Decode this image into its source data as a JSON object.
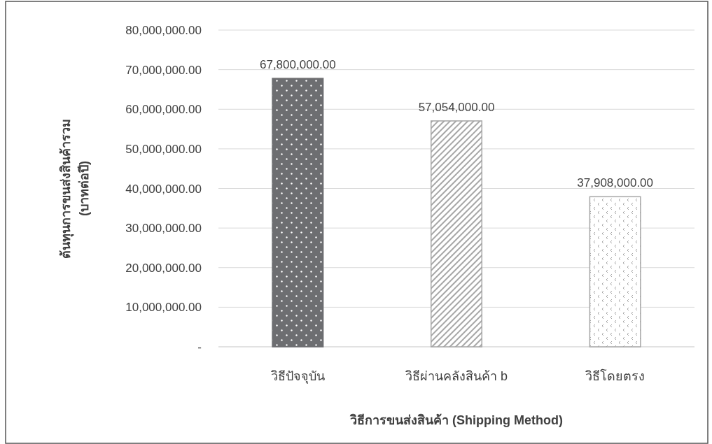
{
  "chart_data": {
    "type": "bar",
    "xlabel": "วิธีการขนส่งสินค้า (Shipping Method)",
    "ylabel": "ต้นทุนการขนส่งสินค้ารวม (บาทต่อปี)",
    "categories": [
      "วิธีปัจจุบัน",
      "วิธีผ่านคลังสินค้า b",
      "วิธีโดยตรง"
    ],
    "values": [
      67800000,
      57054000,
      37908000
    ],
    "colors": [
      "#6d6e71",
      "#a6a6a6",
      "#a6a6a6"
    ],
    "value_labels": [
      "67,800,000.00",
      "57,054,000.00",
      "37,908,000.00"
    ],
    "ylim": [
      0,
      80000000
    ],
    "yticks": [
      {
        "value": 0,
        "label": "-"
      },
      {
        "value": 10000000,
        "label": "10,000,000.00"
      },
      {
        "value": 20000000,
        "label": "20,000,000.00"
      },
      {
        "value": 30000000,
        "label": "30,000,000.00"
      },
      {
        "value": 40000000,
        "label": "40,000,000.00"
      },
      {
        "value": 50000000,
        "label": "50,000,000.00"
      },
      {
        "value": 60000000,
        "label": "60,000,000.00"
      },
      {
        "value": 70000000,
        "label": "70,000,000.00"
      },
      {
        "value": 80000000,
        "label": "80,000,000.00"
      }
    ],
    "grid": "y"
  }
}
